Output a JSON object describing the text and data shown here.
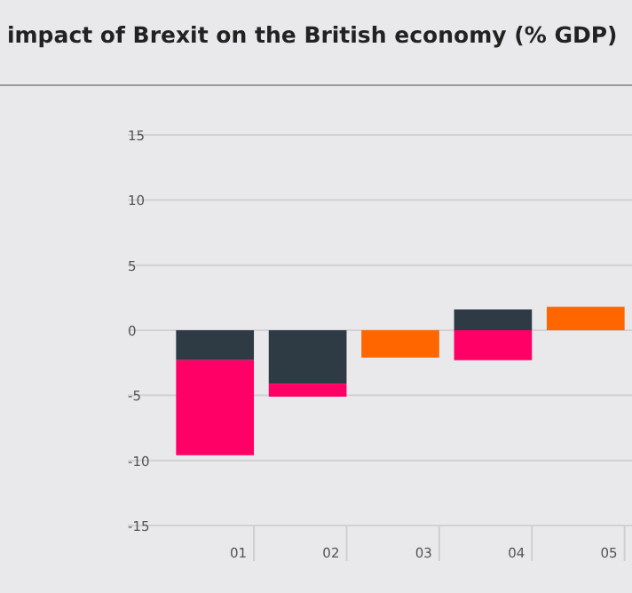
{
  "chart_data": {
    "type": "bar",
    "title": "impact of Brexit on the British economy (% GDP)",
    "categories": [
      "01",
      "02",
      "03",
      "04",
      "05"
    ],
    "stacked": true,
    "series": [
      {
        "color": "#2e3a44",
        "values": [
          -2.3,
          -4.1,
          null,
          1.6,
          null
        ]
      },
      {
        "color": "#ff0066",
        "values": [
          -7.3,
          -1.0,
          null,
          -2.3,
          null
        ]
      },
      {
        "color": "#ff6600",
        "values": [
          null,
          null,
          -2.1,
          null,
          1.8
        ]
      }
    ],
    "ylim": [
      -15,
      15
    ],
    "yticks": [
      -15,
      -10,
      -5,
      0,
      5,
      10,
      15
    ],
    "grid": "y"
  }
}
